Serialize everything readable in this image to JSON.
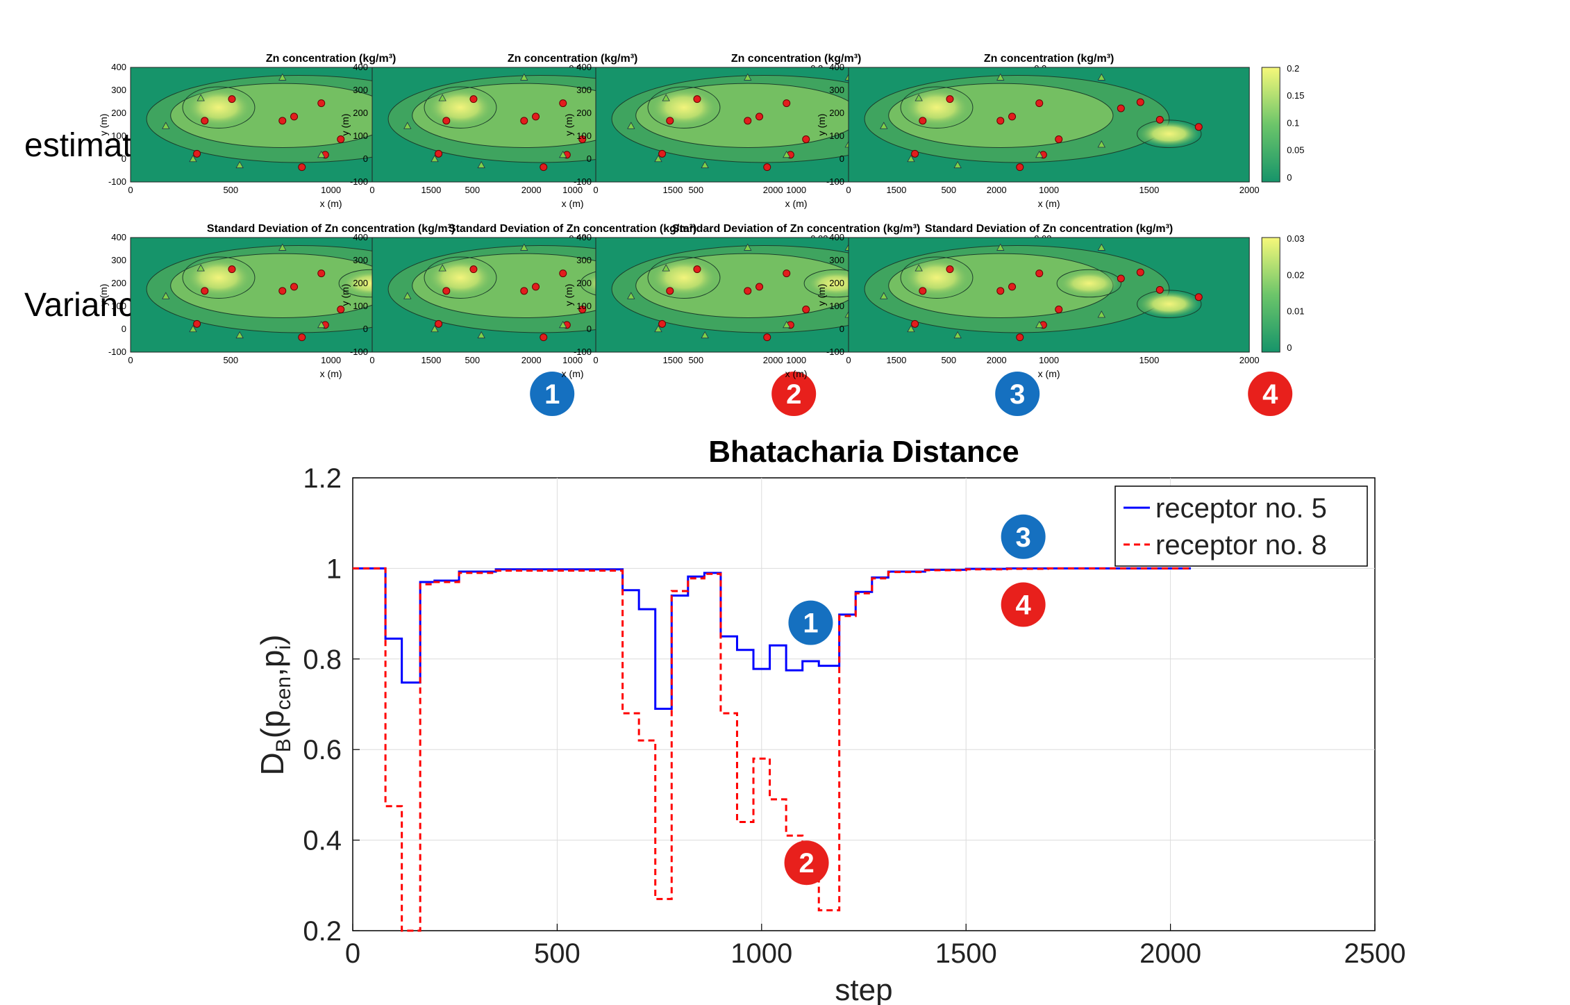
{
  "row_labels": [
    "estimate",
    "Variance"
  ],
  "panels": [
    {
      "id": "1",
      "badge_color": "#1570c0",
      "estimate": {
        "title": "Zn concentration (kg/m³)",
        "colorbar_ticks": [
          "0.2",
          "0.15",
          "0.1",
          "0.05",
          "0"
        ]
      },
      "variance": {
        "title": "Standard Deviation  of Zn concentration (kg/m³)",
        "colorbar_ticks": [
          "0.03",
          "0.02",
          "0.01",
          "0"
        ]
      }
    },
    {
      "id": "2",
      "badge_color": "#e8201c",
      "estimate": {
        "title": "Zn concentration (kg/m³)",
        "colorbar_ticks": [
          "0.2",
          "0.15",
          "0.1",
          "0.05",
          "0"
        ]
      },
      "variance": {
        "title": "Standard Deviation  of Zn concentration (kg/m³)",
        "colorbar_ticks": [
          "0.03",
          "0.02",
          "0.01",
          "0"
        ]
      }
    },
    {
      "id": "3",
      "badge_color": "#1570c0",
      "estimate": {
        "title": "Zn concentration (kg/m³)",
        "colorbar_ticks": [
          "0.2",
          "0.15",
          "0.1",
          "0.05",
          "0"
        ]
      },
      "variance": {
        "title": "Standard Deviation  of Zn concentration (kg/m³)",
        "colorbar_ticks": [
          "0.03",
          "0.02",
          "0.01",
          "0"
        ]
      }
    },
    {
      "id": "4",
      "badge_color": "#e8201c",
      "estimate": {
        "title": "Zn concentration (kg/m³)",
        "colorbar_ticks": [
          "0.2",
          "0.15",
          "0.1",
          "0.05",
          "0"
        ]
      },
      "variance": {
        "title": "Standard Deviation  of Zn concentration (kg/m³)",
        "colorbar_ticks": [
          "0.03",
          "0.02",
          "0.01",
          "0"
        ]
      }
    }
  ],
  "mini_axes": {
    "xlabel": "x (m)",
    "ylabel": "y (m)",
    "xticks": [
      "0",
      "500",
      "1000",
      "1500",
      "2000"
    ],
    "yticks": [
      "400",
      "300",
      "200",
      "100",
      "0",
      "-100"
    ]
  },
  "colors": {
    "field_low": "#16946a",
    "field_high": "#f6f87a",
    "sensor": "#e21d1d",
    "receptor_marker": "#7fd14a",
    "series_5": "#0000ff",
    "series_8": "#ff0000",
    "badge_blue": "#1570c0",
    "badge_red": "#e8201c"
  },
  "chart_data": {
    "type": "line",
    "title": "Bhatacharia Distance",
    "xlabel": "step",
    "ylabel": "D_B(p_cen,p_i)",
    "xlim": [
      0,
      2500
    ],
    "ylim": [
      0.2,
      1.2
    ],
    "xticks": [
      0,
      500,
      1000,
      1500,
      2000,
      2500
    ],
    "yticks": [
      0.2,
      0.4,
      0.6,
      0.8,
      1,
      1.2
    ],
    "grid": true,
    "legend_position": "top-right",
    "series": [
      {
        "name": "receptor no. 5",
        "color": "#0000ff",
        "style": "solid",
        "step": true,
        "x": [
          0,
          80,
          120,
          165,
          200,
          260,
          350,
          660,
          700,
          740,
          780,
          820,
          860,
          900,
          940,
          980,
          1020,
          1060,
          1100,
          1140,
          1190,
          1230,
          1270,
          1310,
          1400,
          1500,
          1600,
          1700,
          1800,
          1900,
          2050
        ],
        "y": [
          1.0,
          0.845,
          0.748,
          0.97,
          0.973,
          0.993,
          0.998,
          0.952,
          0.91,
          0.69,
          0.94,
          0.982,
          0.99,
          0.85,
          0.82,
          0.778,
          0.83,
          0.775,
          0.795,
          0.785,
          0.898,
          0.948,
          0.98,
          0.993,
          0.997,
          0.999,
          1.0,
          1.0,
          1.0,
          1.0,
          1.0
        ]
      },
      {
        "name": "receptor no. 8",
        "color": "#ff0000",
        "style": "dashed",
        "step": true,
        "x": [
          0,
          80,
          120,
          165,
          200,
          260,
          350,
          660,
          700,
          740,
          780,
          820,
          860,
          900,
          940,
          980,
          1020,
          1060,
          1100,
          1140,
          1190,
          1230,
          1270,
          1310,
          1400,
          1500,
          1600,
          1700,
          1800,
          1900,
          2050
        ],
        "y": [
          1.0,
          0.475,
          0.2,
          0.965,
          0.97,
          0.99,
          0.995,
          0.68,
          0.62,
          0.27,
          0.95,
          0.978,
          0.988,
          0.68,
          0.44,
          0.58,
          0.49,
          0.41,
          0.34,
          0.245,
          0.895,
          0.945,
          0.978,
          0.992,
          0.996,
          0.998,
          0.999,
          1.0,
          1.0,
          1.0,
          1.0
        ]
      }
    ],
    "annotations": [
      {
        "text": "1",
        "color": "#1570c0",
        "x": 1120,
        "y": 0.88
      },
      {
        "text": "2",
        "color": "#e8201c",
        "x": 1110,
        "y": 0.35
      },
      {
        "text": "3",
        "color": "#1570c0",
        "x": 1640,
        "y": 1.07
      },
      {
        "text": "4",
        "color": "#e8201c",
        "x": 1640,
        "y": 0.92
      }
    ]
  }
}
